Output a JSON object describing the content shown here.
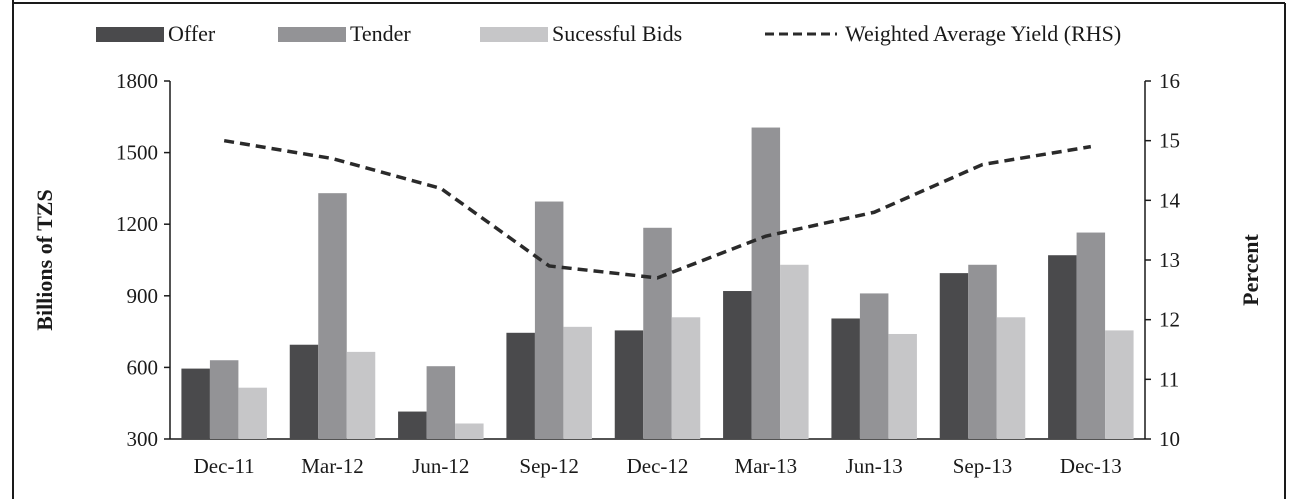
{
  "chart_data": {
    "type": "bar",
    "categories": [
      "Dec-11",
      "Mar-12",
      "Jun-12",
      "Sep-12",
      "Dec-12",
      "Mar-13",
      "Jun-13",
      "Sep-13",
      "Dec-13"
    ],
    "series": [
      {
        "name": "Offer",
        "type": "bar",
        "axis": "left",
        "color": "#4a4a4c",
        "values": [
          595,
          695,
          415,
          745,
          755,
          920,
          805,
          995,
          1070
        ]
      },
      {
        "name": "Tender",
        "type": "bar",
        "axis": "left",
        "color": "#939396",
        "values": [
          630,
          1330,
          605,
          1295,
          1185,
          1605,
          910,
          1030,
          1165
        ]
      },
      {
        "name": "Sucessful Bids",
        "type": "bar",
        "axis": "left",
        "color": "#c6c6c8",
        "values": [
          515,
          665,
          365,
          770,
          810,
          1030,
          740,
          810,
          755
        ]
      },
      {
        "name": "Weighted Average Yield (RHS)",
        "type": "line",
        "axis": "right",
        "color": "#2a2a2a",
        "dash": "dashed",
        "values": [
          15.0,
          14.7,
          14.2,
          12.9,
          12.7,
          13.4,
          13.8,
          14.6,
          14.9
        ]
      }
    ],
    "ylabel": "Billions of TZS",
    "y2label": "Percent",
    "ylim": [
      300,
      1800
    ],
    "yticks": [
      300,
      600,
      900,
      1200,
      1500,
      1800
    ],
    "y2lim": [
      10,
      16
    ],
    "y2ticks": [
      10,
      11,
      12,
      13,
      14,
      15,
      16
    ],
    "legend_position": "top",
    "grid": false
  }
}
